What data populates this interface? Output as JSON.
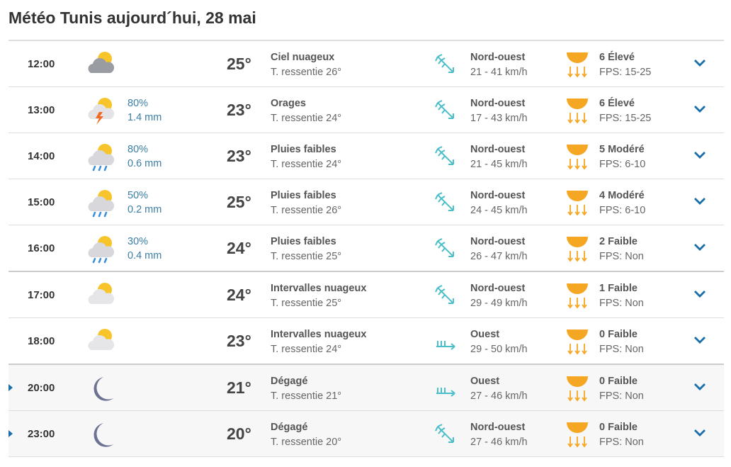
{
  "title": "Météo Tunis aujourd´hui, 28 mai",
  "colors": {
    "accent": "#1a6fa8",
    "wind": "#4bbfc9",
    "uv": "#f5a623",
    "precip": "#3b7fa6"
  },
  "rows": [
    {
      "time": "12:00",
      "icon": "cloudy",
      "precip_prob": "",
      "precip_mm": "",
      "temp": "25°",
      "condition": "Ciel nuageux",
      "feels": "T. ressentie 26°",
      "wind_dir": "Nord-ouest",
      "wind_icon": "nw",
      "wind_speed": "21 - 41 km/h",
      "uv": "6 Élevé",
      "fps": "FPS: 15-25",
      "night": false
    },
    {
      "time": "13:00",
      "icon": "storm",
      "precip_prob": "80%",
      "precip_mm": "1.4 mm",
      "temp": "23°",
      "condition": "Orages",
      "feels": "T. ressentie 24°",
      "wind_dir": "Nord-ouest",
      "wind_icon": "nw",
      "wind_speed": "17 - 43 km/h",
      "uv": "6 Élevé",
      "fps": "FPS: 15-25",
      "night": false
    },
    {
      "time": "14:00",
      "icon": "rain",
      "precip_prob": "80%",
      "precip_mm": "0.6 mm",
      "temp": "23°",
      "condition": "Pluies faibles",
      "feels": "T. ressentie 24°",
      "wind_dir": "Nord-ouest",
      "wind_icon": "nw",
      "wind_speed": "21 - 45 km/h",
      "uv": "5 Modéré",
      "fps": "FPS: 6-10",
      "night": false
    },
    {
      "time": "15:00",
      "icon": "rain",
      "precip_prob": "50%",
      "precip_mm": "0.2 mm",
      "temp": "25°",
      "condition": "Pluies faibles",
      "feels": "T. ressentie 26°",
      "wind_dir": "Nord-ouest",
      "wind_icon": "nw",
      "wind_speed": "24 - 45 km/h",
      "uv": "4 Modéré",
      "fps": "FPS: 6-10",
      "night": false
    },
    {
      "time": "16:00",
      "icon": "rain",
      "precip_prob": "30%",
      "precip_mm": "0.4 mm",
      "temp": "24°",
      "condition": "Pluies faibles",
      "feels": "T. ressentie 25°",
      "wind_dir": "Nord-ouest",
      "wind_icon": "nw",
      "wind_speed": "26 - 47 km/h",
      "uv": "2 Faible",
      "fps": "FPS: Non",
      "night": false
    },
    {
      "time": "17:00",
      "icon": "partly",
      "precip_prob": "",
      "precip_mm": "",
      "temp": "24°",
      "condition": "Intervalles nuageux",
      "feels": "T. ressentie 25°",
      "wind_dir": "Nord-ouest",
      "wind_icon": "nw",
      "wind_speed": "29 - 49 km/h",
      "uv": "1 Faible",
      "fps": "FPS: Non",
      "night": false
    },
    {
      "time": "18:00",
      "icon": "partly",
      "precip_prob": "",
      "precip_mm": "",
      "temp": "23°",
      "condition": "Intervalles nuageux",
      "feels": "T. ressentie 24°",
      "wind_dir": "Ouest",
      "wind_icon": "w",
      "wind_speed": "29 - 50 km/h",
      "uv": "0 Faible",
      "fps": "FPS: Non",
      "night": false
    },
    {
      "time": "20:00",
      "icon": "moon",
      "precip_prob": "",
      "precip_mm": "",
      "temp": "21°",
      "condition": "Dégagé",
      "feels": "T. ressentie 21°",
      "wind_dir": "Ouest",
      "wind_icon": "w",
      "wind_speed": "27 - 46 km/h",
      "uv": "0 Faible",
      "fps": "FPS: Non",
      "night": true
    },
    {
      "time": "23:00",
      "icon": "moon",
      "precip_prob": "",
      "precip_mm": "",
      "temp": "20°",
      "condition": "Dégagé",
      "feels": "T. ressentie 20°",
      "wind_dir": "Nord-ouest",
      "wind_icon": "nw",
      "wind_speed": "27 - 46 km/h",
      "uv": "0 Faible",
      "fps": "FPS: Non",
      "night": true
    }
  ]
}
